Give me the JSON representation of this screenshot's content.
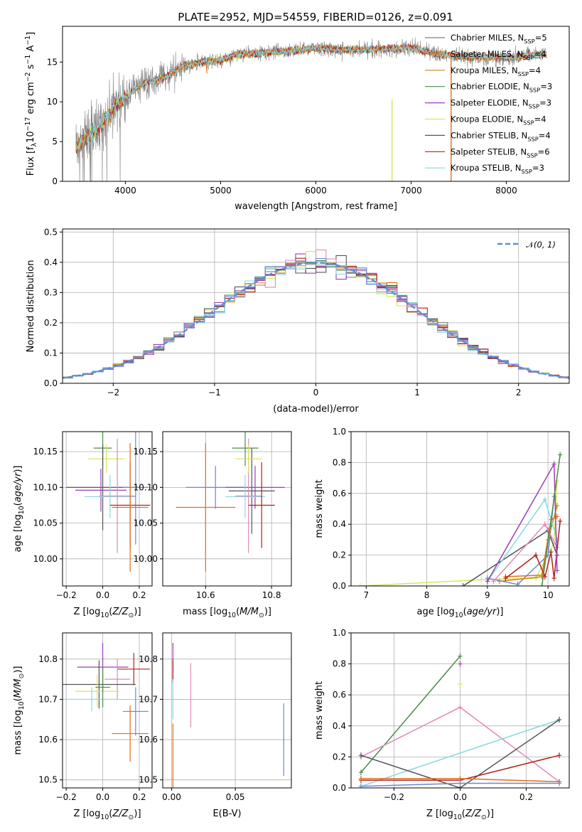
{
  "figure_title": "PLATE=2952, MJD=54559, FIBERID=0126, z=0.091",
  "models": [
    {
      "name": "Chabrier MILES, N_SSP=5",
      "color": "#808080"
    },
    {
      "name": "Salpeter MILES, N_SSP=4",
      "color": "#e06f1c"
    },
    {
      "name": "Kroupa MILES, N_SSP=4",
      "color": "#c9871f"
    },
    {
      "name": "Chabrier ELODIE, N_SSP=3",
      "color": "#4b8a4b"
    },
    {
      "name": "Salpeter ELODIE, N_SSP=3",
      "color": "#9a3fb5"
    },
    {
      "name": "Kroupa ELODIE, N_SSP=4",
      "color": "#d9e55a"
    },
    {
      "name": "Chabrier STELIB, N_SSP=4",
      "color": "#555555"
    },
    {
      "name": "Salpeter STELIB, N_SSP=6",
      "color": "#b0231c"
    },
    {
      "name": "Kroupa STELIB, N_SSP=3",
      "color": "#86d9e2"
    }
  ],
  "chart_data": [
    {
      "type": "line",
      "title": "PLATE=2952, MJD=54559, FIBERID=0126, z=0.091",
      "xlabel": "wavelength [Angstrom, rest frame]",
      "ylabel": "Flux [f_λ 10^-17 erg cm^-2 s^-1 A^-1]",
      "xlim": [
        3340,
        8660
      ],
      "ylim": [
        0,
        19.5
      ],
      "xticks": [
        4000,
        5000,
        6000,
        7000,
        8000
      ],
      "yticks": [
        0,
        5,
        10,
        15
      ],
      "continuum": {
        "x": [
          3500,
          3700,
          3900,
          4000,
          4200,
          4400,
          4600,
          4800,
          5000,
          5200,
          5500,
          5800,
          6000,
          6300,
          6600,
          7000,
          7300,
          7600,
          8000,
          8400
        ],
        "y": [
          4.5,
          6.5,
          9.5,
          10.5,
          12.5,
          13.0,
          14.5,
          15.0,
          15.2,
          16.0,
          16.2,
          16.5,
          16.8,
          16.5,
          16.6,
          16.8,
          16.0,
          15.6,
          15.6,
          16.0
        ]
      },
      "spike_lines": [
        {
          "x": 6800,
          "ymax": 10.3,
          "series": "Kroupa ELODIE, N_SSP=4"
        },
        {
          "x": 7420,
          "ymax": 16.2,
          "series": "Salpeter MILES, N_SSP=4"
        }
      ],
      "legend": "right",
      "grid": false
    },
    {
      "type": "histogram",
      "xlabel": "(data-model)/error",
      "ylabel": "Normed distribution",
      "xlim": [
        -2.5,
        2.5
      ],
      "ylim": [
        0,
        0.51
      ],
      "xticks": [
        -2,
        -1,
        0,
        1,
        2
      ],
      "yticks": [
        0.0,
        0.1,
        0.2,
        0.3,
        0.4,
        0.5
      ],
      "reference_curve": {
        "name": "N(0,1)",
        "style": "dashed",
        "color": "#5a8fd6"
      },
      "legend": "top-right",
      "grid": true
    },
    {
      "type": "errorbar",
      "xlabel": "Z [log10(Z/Z⊙)]",
      "ylabel": "age [log10(age/yr)]",
      "xlim": [
        -0.22,
        0.27
      ],
      "ylim": [
        9.962,
        10.178
      ],
      "xticks": [
        -0.2,
        0.0,
        0.2
      ],
      "yticks": [
        10.0,
        10.05,
        10.1,
        10.15
      ],
      "points": [
        {
          "x": 0.0,
          "y": 10.155,
          "xerr": 0.05,
          "yerr": 0.025,
          "color": "#4b8a4b"
        },
        {
          "x": 0.02,
          "y": 10.14,
          "xerr": 0.1,
          "yerr": 0.02,
          "color": "#d9e55a"
        },
        {
          "x": 0.0,
          "y": 10.1,
          "xerr": 0.2,
          "yerr": 0.06,
          "color": "#555555"
        },
        {
          "x": -0.01,
          "y": 10.096,
          "xerr": 0.14,
          "yerr": 0.03,
          "color": "#9a3fb5"
        },
        {
          "x": 0.04,
          "y": 10.087,
          "xerr": 0.14,
          "yerr": 0.03,
          "color": "#86d9e2"
        },
        {
          "x": 0.08,
          "y": 10.088,
          "xerr": 0.1,
          "yerr": 0.08,
          "color": "#e08ab8"
        },
        {
          "x": 0.18,
          "y": 10.1,
          "xerr": 0.07,
          "yerr": 0.08,
          "color": "#6e86d6"
        },
        {
          "x": 0.15,
          "y": 10.075,
          "xerr": 0.11,
          "yerr": 0.06,
          "color": "#b0231c"
        },
        {
          "x": 0.15,
          "y": 10.072,
          "xerr": 0.1,
          "yerr": 0.09,
          "color": "#e06f1c"
        }
      ],
      "grid": true
    },
    {
      "type": "errorbar",
      "xlabel": "mass [log10(M/M⊙)]",
      "ylabel": "",
      "xlim": [
        10.47,
        10.86
      ],
      "ylim": [
        9.962,
        10.178
      ],
      "xticks": [
        10.6,
        10.8
      ],
      "yticks": [
        10.0,
        10.05,
        10.1,
        10.15
      ],
      "points": [
        {
          "x": 10.6,
          "y": 10.072,
          "xerr": 0.09,
          "yerr": 0.09,
          "color": "#e06f1c"
        },
        {
          "x": 10.63,
          "y": 10.1,
          "xerr": 0.09,
          "yerr": 0.03,
          "color": "#6e86d6"
        },
        {
          "x": 10.75,
          "y": 10.1,
          "xerr": 0.09,
          "yerr": 0.03,
          "color": "#9a3fb5"
        },
        {
          "x": 10.74,
          "y": 10.095,
          "xerr": 0.07,
          "yerr": 0.06,
          "color": "#555555"
        },
        {
          "x": 10.72,
          "y": 10.087,
          "xerr": 0.06,
          "yerr": 0.03,
          "color": "#86d9e2"
        },
        {
          "x": 10.73,
          "y": 10.088,
          "xerr": 0.04,
          "yerr": 0.08,
          "color": "#e08ab8"
        },
        {
          "x": 10.72,
          "y": 10.155,
          "xerr": 0.04,
          "yerr": 0.025,
          "color": "#4b8a4b"
        },
        {
          "x": 10.73,
          "y": 10.14,
          "xerr": 0.04,
          "yerr": 0.02,
          "color": "#d9e55a"
        },
        {
          "x": 10.77,
          "y": 10.075,
          "xerr": 0.04,
          "yerr": 0.06,
          "color": "#b0231c"
        }
      ],
      "grid": true
    },
    {
      "type": "line",
      "xlabel": "age [log10(age/yr)]",
      "ylabel": "mass weight",
      "xlim": [
        6.75,
        10.35
      ],
      "ylim": [
        0,
        1.0
      ],
      "xticks": [
        7,
        8,
        9,
        10
      ],
      "yticks": [
        0.0,
        0.2,
        0.4,
        0.6,
        0.8,
        1.0
      ],
      "series": [
        {
          "color": "#d9e55a",
          "x": [
            6.9,
            8.9,
            9.8,
            10.1,
            10.15
          ],
          "y": [
            0.0,
            0.04,
            0.05,
            0.28,
            0.68
          ]
        },
        {
          "color": "#555555",
          "x": [
            8.6,
            10.0,
            10.15
          ],
          "y": [
            0.0,
            0.36,
            0.2
          ]
        },
        {
          "color": "#6e86d6",
          "x": [
            9.0,
            9.5,
            10.0,
            10.1
          ],
          "y": [
            0.05,
            0.01,
            0.2,
            0.58
          ]
        },
        {
          "color": "#e06f1c",
          "x": [
            9.3,
            9.9,
            10.05,
            10.15
          ],
          "y": [
            0.06,
            0.07,
            0.43,
            0.45
          ]
        },
        {
          "color": "#c9871f",
          "x": [
            9.2,
            9.9,
            10.0,
            10.15
          ],
          "y": [
            0.03,
            0.06,
            0.3,
            0.52
          ]
        },
        {
          "color": "#86d9e2",
          "x": [
            9.0,
            9.95,
            10.15
          ],
          "y": [
            0.03,
            0.56,
            0.3
          ]
        },
        {
          "color": "#e08ab8",
          "x": [
            9.1,
            9.95,
            10.15
          ],
          "y": [
            0.03,
            0.4,
            0.25
          ]
        },
        {
          "color": "#b0231c",
          "x": [
            9.3,
            9.8,
            9.95,
            10.05,
            10.1,
            10.2
          ],
          "y": [
            0.05,
            0.2,
            0.06,
            0.22,
            0.05,
            0.42
          ]
        },
        {
          "color": "#9a3fb5",
          "x": [
            9.0,
            10.1,
            10.15
          ],
          "y": [
            0.03,
            0.79,
            0.1
          ]
        },
        {
          "color": "#4b8a4b",
          "x": [
            9.9,
            10.2
          ],
          "y": [
            0.0,
            0.85
          ]
        }
      ],
      "grid": true
    },
    {
      "type": "errorbar",
      "xlabel": "Z [log10(Z/Z⊙)]",
      "ylabel": "mass [log10(M/M⊙)]",
      "xlim": [
        -0.22,
        0.27
      ],
      "ylim": [
        10.48,
        10.865
      ],
      "xticks": [
        -0.2,
        0.0,
        0.2
      ],
      "yticks": [
        10.5,
        10.6,
        10.7,
        10.8
      ],
      "points": [
        {
          "x": 0.0,
          "y": 10.78,
          "xerr": 0.14,
          "yerr": 0.06,
          "color": "#9a3fb5"
        },
        {
          "x": 0.17,
          "y": 10.775,
          "xerr": 0.09,
          "yerr": 0.04,
          "color": "#b0231c"
        },
        {
          "x": 0.08,
          "y": 10.75,
          "xerr": 0.07,
          "yerr": 0.05,
          "color": "#e08ab8"
        },
        {
          "x": -0.02,
          "y": 10.737,
          "xerr": 0.2,
          "yerr": 0.06,
          "color": "#555555"
        },
        {
          "x": -0.03,
          "y": 10.72,
          "xerr": 0.12,
          "yerr": 0.04,
          "color": "#d9e55a"
        },
        {
          "x": -0.06,
          "y": 10.7,
          "xerr": 0.15,
          "yerr": 0.03,
          "color": "#86d9e2"
        },
        {
          "x": 0.18,
          "y": 10.67,
          "xerr": 0.07,
          "yerr": 0.06,
          "color": "#6e86d6"
        },
        {
          "x": 0.15,
          "y": 10.615,
          "xerr": 0.1,
          "yerr": 0.07,
          "color": "#e06f1c"
        },
        {
          "x": 0.0,
          "y": 10.73,
          "xerr": 0.04,
          "yerr": 0.05,
          "color": "#4b8a4b"
        }
      ],
      "grid": true
    },
    {
      "type": "errorbar",
      "xlabel": "E(B-V)",
      "ylabel": "",
      "xlim": [
        -0.007,
        0.094
      ],
      "ylim": [
        10.48,
        10.865
      ],
      "xticks": [
        0.0,
        0.05
      ],
      "yticks": [
        10.5,
        10.6,
        10.7,
        10.8
      ],
      "points": [
        {
          "x": 0.001,
          "y": 10.79,
          "xerr": 0.0,
          "yerr": 0.05,
          "color": "#9a3fb5"
        },
        {
          "x": 0.001,
          "y": 10.77,
          "xerr": 0.0,
          "yerr": 0.03,
          "color": "#b0231c"
        },
        {
          "x": 0.001,
          "y": 10.7,
          "xerr": 0.0,
          "yerr": 0.05,
          "color": "#86d9e2"
        },
        {
          "x": 0.001,
          "y": 10.56,
          "xerr": 0.0,
          "yerr": 0.08,
          "color": "#e06f1c"
        },
        {
          "x": 0.015,
          "y": 10.71,
          "xerr": 0.0,
          "yerr": 0.08,
          "color": "#e08ab8"
        },
        {
          "x": 0.088,
          "y": 10.6,
          "xerr": 0.0,
          "yerr": 0.09,
          "color": "#6e86d6"
        }
      ],
      "grid": true
    },
    {
      "type": "line",
      "xlabel": "Z [log10(Z/Z⊙)]",
      "ylabel": "mass weight",
      "xlim": [
        -0.33,
        0.33
      ],
      "ylim": [
        0,
        1.0
      ],
      "xticks": [
        -0.2,
        0.0,
        0.2
      ],
      "yticks": [
        0.0,
        0.2,
        0.4,
        0.6,
        0.8,
        1.0
      ],
      "series": [
        {
          "color": "#4b8a4b",
          "x": [
            -0.3,
            0.0
          ],
          "y": [
            0.1,
            0.85
          ]
        },
        {
          "color": "#e08ab8",
          "x": [
            -0.3,
            0.0,
            0.3
          ],
          "y": [
            0.2,
            0.52,
            0.04
          ]
        },
        {
          "color": "#86d9e2",
          "x": [
            -0.3,
            0.3
          ],
          "y": [
            0.01,
            0.44
          ]
        },
        {
          "color": "#555555",
          "x": [
            -0.3,
            0.0,
            0.3
          ],
          "y": [
            0.21,
            0.0,
            0.44
          ]
        },
        {
          "color": "#b0231c",
          "x": [
            -0.3,
            0.0,
            0.3
          ],
          "y": [
            0.05,
            0.05,
            0.21
          ]
        },
        {
          "color": "#e06f1c",
          "x": [
            -0.3,
            0.0,
            0.3
          ],
          "y": [
            0.06,
            0.06,
            0.04
          ]
        },
        {
          "color": "#6e86d6",
          "x": [
            -0.3,
            0.0,
            0.3
          ],
          "y": [
            0.01,
            0.03,
            0.03
          ]
        },
        {
          "color": "#9a3fb5",
          "x": [
            0.0
          ],
          "y": [
            0.8
          ]
        },
        {
          "color": "#d9e55a",
          "x": [
            0.0
          ],
          "y": [
            0.67
          ]
        }
      ],
      "grid": true
    }
  ]
}
